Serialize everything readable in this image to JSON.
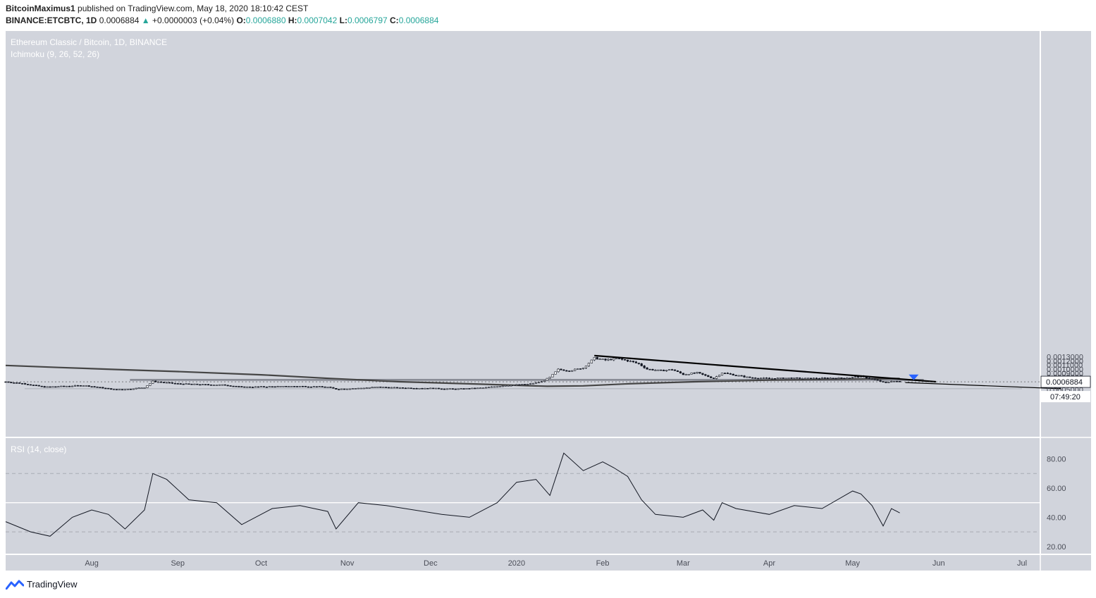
{
  "header": {
    "author": "BitcoinMaximus1",
    "published_text": "published on TradingView.com, May 18, 2020 18:10:42 CEST",
    "symbol": "BINANCE:ETCBTC, 1D",
    "last_price": "0.0006884",
    "change_arrow": "▲",
    "change": "+0.0000003 (+0.04%)",
    "o_label": "O:",
    "o_value": "0.0006880",
    "h_label": "H:",
    "h_value": "0.0007042",
    "l_label": "L:",
    "l_value": "0.0006797",
    "c_label": "C:",
    "c_value": "0.0006884"
  },
  "brand": {
    "name": "TradingView",
    "icon": "tradingview-logo-icon"
  },
  "colors": {
    "chart_bg": "#d1d4dc",
    "line": "#131722",
    "ma": "#454545",
    "zone": "#9598a1",
    "accent_marker": "#2962ff",
    "rsi_band_line": "#ffffff"
  },
  "chart_data": [
    {
      "type": "candlestick",
      "title": "Ethereum Classic / Bitcoin, 1D, BINANCE",
      "indicator": "Ichimoku (9, 26, 52, 26)",
      "x_ticks": [
        "Aug",
        "Sep",
        "Oct",
        "Nov",
        "Dec",
        "2020",
        "Feb",
        "Mar",
        "Apr",
        "May",
        "Jun",
        "Jul"
      ],
      "y_ticks": [
        "0.0013000",
        "0.0012000",
        "0.0011000",
        "0.0010000",
        "0.0009000",
        "0.0008000",
        "0.0006000",
        "0.0005000",
        "0.0004000"
      ],
      "ylim": [
        0.00036,
        0.00138
      ],
      "last_price_label": "0.0006884",
      "countdown_label": "07:49:20",
      "price_path": [
        [
          "2019-07-01",
          0.00069
        ],
        [
          "2019-07-08",
          0.00064
        ],
        [
          "2019-07-15",
          0.00056
        ],
        [
          "2019-07-22",
          0.00058
        ],
        [
          "2019-07-29",
          0.0006
        ],
        [
          "2019-08-05",
          0.00054
        ],
        [
          "2019-08-09",
          0.0005
        ],
        [
          "2019-08-14",
          0.00051
        ],
        [
          "2019-08-20",
          0.00055
        ],
        [
          "2019-08-23",
          0.0007
        ],
        [
          "2019-08-26",
          0.00068
        ],
        [
          "2019-09-01",
          0.00064
        ],
        [
          "2019-09-10",
          0.00062
        ],
        [
          "2019-09-18",
          0.00061
        ],
        [
          "2019-09-24",
          0.00056
        ],
        [
          "2019-10-05",
          0.00057
        ],
        [
          "2019-10-15",
          0.00058
        ],
        [
          "2019-10-25",
          0.00056
        ],
        [
          "2019-10-28",
          0.00051
        ],
        [
          "2019-11-05",
          0.00053
        ],
        [
          "2019-11-12",
          0.00056
        ],
        [
          "2019-11-20",
          0.00054
        ],
        [
          "2019-12-01",
          0.00053
        ],
        [
          "2019-12-10",
          0.00051
        ],
        [
          "2019-12-20",
          0.00054
        ],
        [
          "2019-12-28",
          0.0006
        ],
        [
          "2020-01-05",
          0.00063
        ],
        [
          "2020-01-10",
          0.00069
        ],
        [
          "2020-01-13",
          0.0008
        ],
        [
          "2020-01-16",
          0.00099
        ],
        [
          "2020-01-20",
          0.00096
        ],
        [
          "2020-01-25",
          0.00103
        ],
        [
          "2020-01-29",
          0.00127
        ],
        [
          "2020-02-02",
          0.00122
        ],
        [
          "2020-02-06",
          0.00126
        ],
        [
          "2020-02-11",
          0.00119
        ],
        [
          "2020-02-14",
          0.00113
        ],
        [
          "2020-02-17",
          0.001
        ],
        [
          "2020-02-22",
          0.00096
        ],
        [
          "2020-02-26",
          0.00099
        ],
        [
          "2020-03-01",
          0.00087
        ],
        [
          "2020-03-06",
          0.00091
        ],
        [
          "2020-03-09",
          0.00084
        ],
        [
          "2020-03-12",
          0.00077
        ],
        [
          "2020-03-15",
          0.00091
        ],
        [
          "2020-03-20",
          0.00085
        ],
        [
          "2020-03-25",
          0.00079
        ],
        [
          "2020-04-01",
          0.00077
        ],
        [
          "2020-04-08",
          0.00078
        ],
        [
          "2020-04-15",
          0.00077
        ],
        [
          "2020-04-22",
          0.00078
        ],
        [
          "2020-04-28",
          0.00078
        ],
        [
          "2020-05-01",
          0.0008
        ],
        [
          "2020-05-04",
          0.00082
        ],
        [
          "2020-05-07",
          0.00077
        ],
        [
          "2020-05-10",
          0.00072
        ],
        [
          "2020-05-13",
          0.00066
        ],
        [
          "2020-05-15",
          0.00071
        ],
        [
          "2020-05-18",
          0.000688
        ]
      ],
      "moving_average": [
        [
          "2019-07-01",
          0.00109
        ],
        [
          "2019-07-20",
          0.00104
        ],
        [
          "2019-08-10",
          0.00099
        ],
        [
          "2019-09-01",
          0.00094
        ],
        [
          "2019-10-01",
          0.00086
        ],
        [
          "2019-10-26",
          0.00077
        ],
        [
          "2019-11-20",
          0.00069
        ],
        [
          "2019-12-20",
          0.00063
        ],
        [
          "2020-01-12",
          0.00058
        ],
        [
          "2020-01-25",
          0.00059
        ],
        [
          "2020-02-10",
          0.00064
        ],
        [
          "2020-03-05",
          0.00069
        ],
        [
          "2020-04-01",
          0.00073
        ],
        [
          "2020-04-25",
          0.00075
        ],
        [
          "2020-05-18",
          0.00077
        ]
      ],
      "resistance_zone": [
        0.00072,
        0.00075
      ],
      "support_zone": [
        0.00051,
        0.00053
      ],
      "trendline": [
        [
          "2020-01-29",
          0.00133
        ],
        [
          "2020-05-31",
          0.00069
        ]
      ],
      "projection_arrow": [
        [
          "2020-05-20",
          0.00067
        ],
        [
          "2020-07-15",
          0.00052
        ]
      ]
    },
    {
      "type": "line",
      "title": "RSI (14, close)",
      "y_ticks": [
        "80.00",
        "60.00",
        "40.00",
        "20.00"
      ],
      "ylim": [
        16,
        90
      ],
      "bands": [
        70,
        30
      ],
      "mid_line": 50,
      "series": [
        [
          "2019-07-01",
          37
        ],
        [
          "2019-07-10",
          30
        ],
        [
          "2019-07-17",
          27
        ],
        [
          "2019-07-25",
          40
        ],
        [
          "2019-08-01",
          45
        ],
        [
          "2019-08-07",
          42
        ],
        [
          "2019-08-13",
          32
        ],
        [
          "2019-08-20",
          45
        ],
        [
          "2019-08-23",
          70
        ],
        [
          "2019-08-28",
          66
        ],
        [
          "2019-09-05",
          52
        ],
        [
          "2019-09-15",
          50
        ],
        [
          "2019-09-24",
          35
        ],
        [
          "2019-10-05",
          46
        ],
        [
          "2019-10-15",
          48
        ],
        [
          "2019-10-25",
          44
        ],
        [
          "2019-10-28",
          32
        ],
        [
          "2019-11-05",
          50
        ],
        [
          "2019-11-15",
          48
        ],
        [
          "2019-11-25",
          45
        ],
        [
          "2019-12-05",
          42
        ],
        [
          "2019-12-15",
          40
        ],
        [
          "2019-12-25",
          50
        ],
        [
          "2020-01-01",
          64
        ],
        [
          "2020-01-08",
          66
        ],
        [
          "2020-01-13",
          55
        ],
        [
          "2020-01-18",
          84
        ],
        [
          "2020-01-25",
          72
        ],
        [
          "2020-02-01",
          78
        ],
        [
          "2020-02-05",
          74
        ],
        [
          "2020-02-10",
          68
        ],
        [
          "2020-02-15",
          52
        ],
        [
          "2020-02-20",
          42
        ],
        [
          "2020-03-01",
          40
        ],
        [
          "2020-03-08",
          45
        ],
        [
          "2020-03-12",
          38
        ],
        [
          "2020-03-15",
          50
        ],
        [
          "2020-03-20",
          46
        ],
        [
          "2020-04-01",
          42
        ],
        [
          "2020-04-10",
          48
        ],
        [
          "2020-04-20",
          46
        ],
        [
          "2020-05-01",
          58
        ],
        [
          "2020-05-04",
          56
        ],
        [
          "2020-05-08",
          48
        ],
        [
          "2020-05-12",
          34
        ],
        [
          "2020-05-15",
          46
        ],
        [
          "2020-05-18",
          43
        ]
      ]
    }
  ]
}
